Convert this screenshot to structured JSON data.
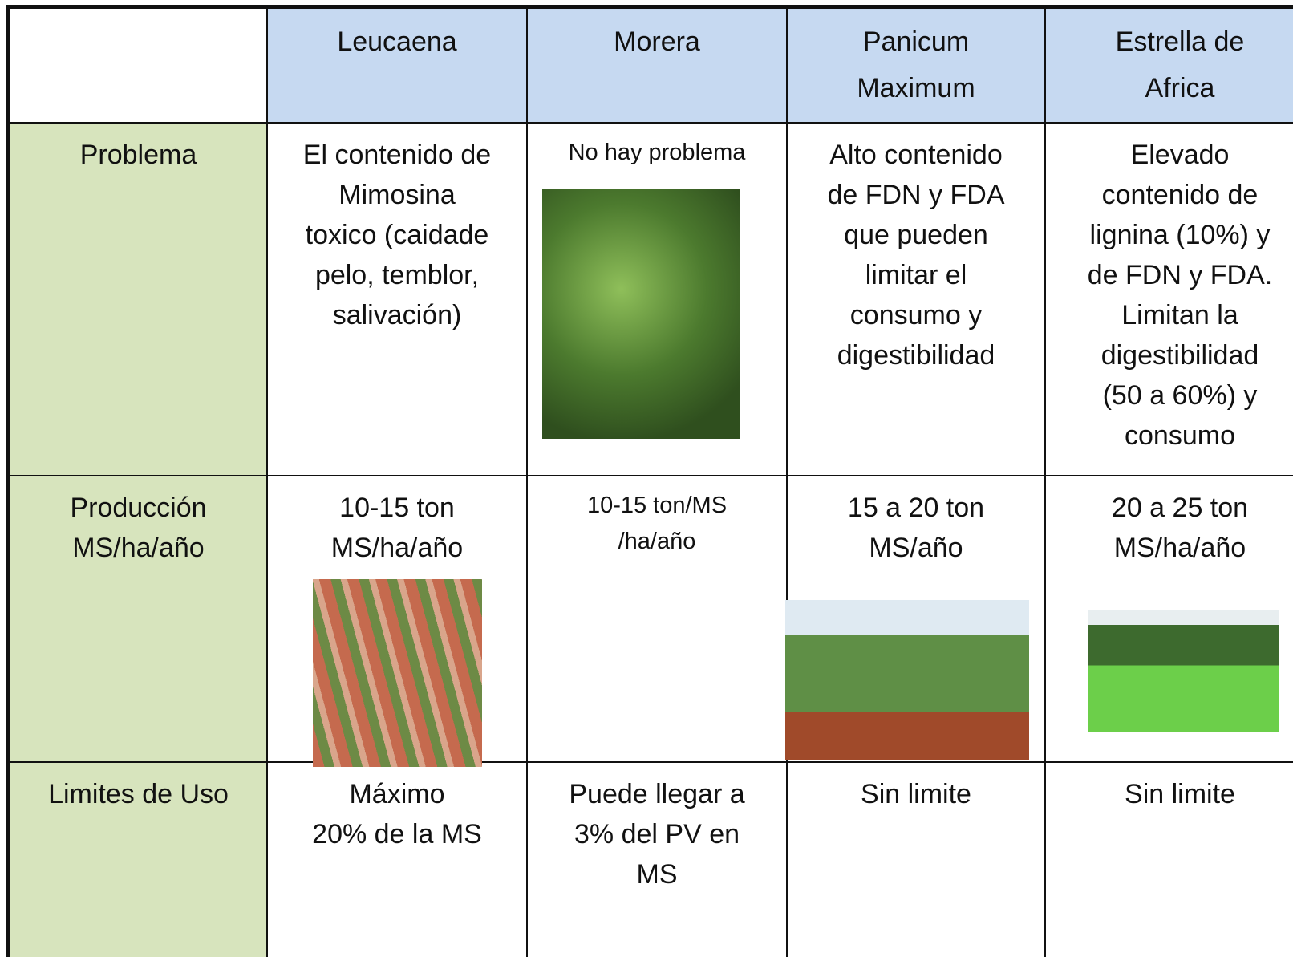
{
  "table": {
    "columns": [
      [
        "Leucaena"
      ],
      [
        "Morera"
      ],
      [
        "Panicum",
        "Maximum"
      ],
      [
        "Estrella de",
        "Africa"
      ]
    ],
    "rows": [
      {
        "label": [
          "Problema"
        ],
        "cells": [
          [
            "El contenido de",
            "Mimosina",
            "toxico (caidade",
            "pelo, temblor,",
            "salivación)"
          ],
          [
            "No hay problema"
          ],
          [
            "Alto contenido",
            "de FDN y FDA",
            "que pueden",
            "limitar el",
            "consumo y",
            "digestibilidad"
          ],
          [
            "Elevado",
            "contenido de",
            "lignina (10%) y",
            "de FDN y FDA.",
            "Limitan la",
            "digestibilidad",
            "(50 a 60%) y",
            "consumo"
          ]
        ]
      },
      {
        "label": [
          "Producción",
          "MS/ha/año"
        ],
        "cells": [
          [
            "10-15 ton",
            "MS/ha/año"
          ],
          [
            "10-15 ton/MS",
            "/ha/año"
          ],
          [
            "15 a 20 ton",
            "MS/año"
          ],
          [
            "20 a 25 ton",
            "MS/ha/año"
          ]
        ]
      },
      {
        "label": [
          "Limites de Uso"
        ],
        "cells": [
          [
            "Máximo",
            "20% de la MS"
          ],
          [
            "Puede llegar a",
            "3% del PV en",
            "MS"
          ],
          [
            "Sin limite"
          ],
          [
            "Sin limite"
          ]
        ]
      }
    ]
  }
}
